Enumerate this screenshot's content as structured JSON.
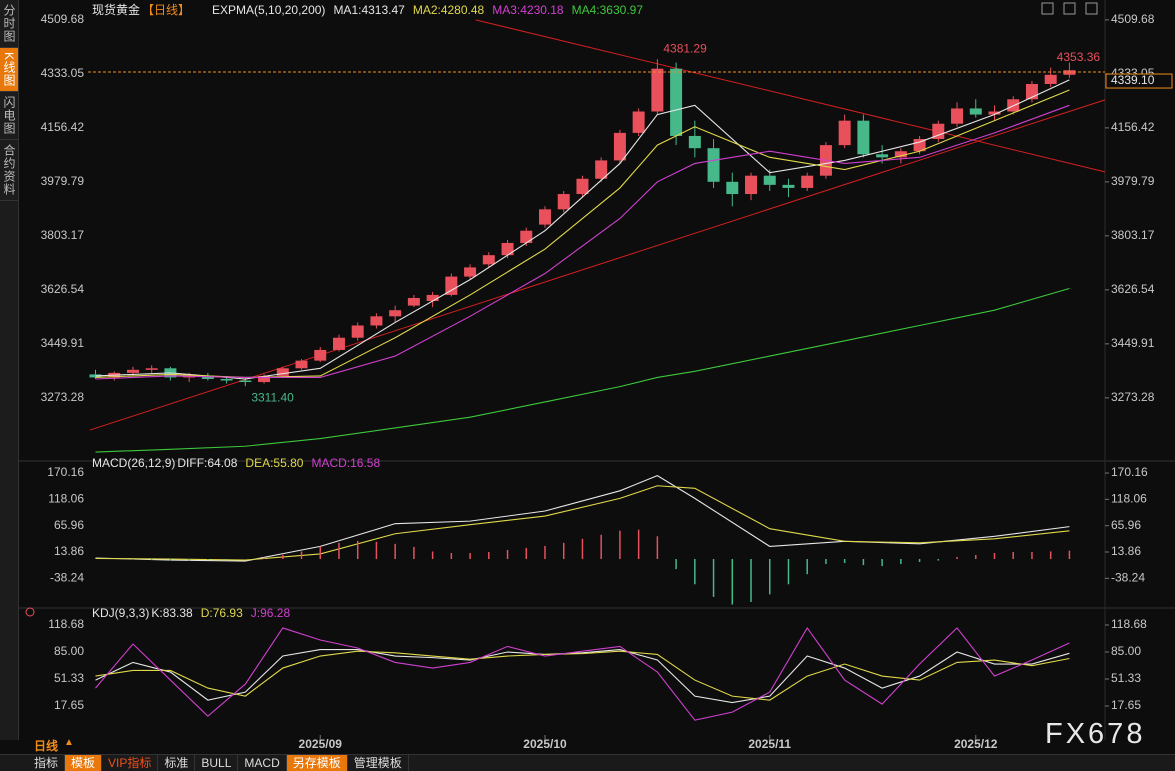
{
  "sidebar": {
    "tabs": [
      "分时图",
      "K线图",
      "闪电图",
      "合约资料"
    ]
  },
  "toolbar": {
    "period": "日线",
    "buttons": [
      "指标",
      "模板",
      "VIP指标",
      "标准",
      "BULL",
      "MACD",
      "另存模板",
      "管理模板"
    ]
  },
  "watermark": "FX678",
  "chart_data": [
    {
      "type": "candlestick",
      "title": "现货黄金",
      "period": "【日线】",
      "indicator": "EXPMA(5,10,20,200)",
      "up_color": "#e8505b",
      "down_color": "#47b88a",
      "ohlc": [
        [
          3350,
          3365,
          3335,
          3340
        ],
        [
          3340,
          3360,
          3330,
          3355
        ],
        [
          3355,
          3375,
          3345,
          3365
        ],
        [
          3365,
          3380,
          3355,
          3370
        ],
        [
          3370,
          3375,
          3330,
          3340
        ],
        [
          3340,
          3355,
          3325,
          3345
        ],
        [
          3345,
          3355,
          3330,
          3335
        ],
        [
          3335,
          3345,
          3320,
          3330
        ],
        [
          3330,
          3340,
          3311.4,
          3325
        ],
        [
          3325,
          3350,
          3320,
          3345
        ],
        [
          3345,
          3375,
          3340,
          3370
        ],
        [
          3370,
          3400,
          3365,
          3395
        ],
        [
          3395,
          3440,
          3390,
          3430
        ],
        [
          3430,
          3480,
          3425,
          3470
        ],
        [
          3470,
          3520,
          3460,
          3510
        ],
        [
          3510,
          3550,
          3500,
          3540
        ],
        [
          3540,
          3575,
          3520,
          3560
        ],
        [
          3575,
          3610,
          3570,
          3600
        ],
        [
          3590,
          3620,
          3570,
          3610
        ],
        [
          3610,
          3680,
          3605,
          3670
        ],
        [
          3670,
          3710,
          3660,
          3700
        ],
        [
          3710,
          3750,
          3700,
          3740
        ],
        [
          3740,
          3790,
          3730,
          3780
        ],
        [
          3780,
          3830,
          3770,
          3820
        ],
        [
          3840,
          3900,
          3830,
          3890
        ],
        [
          3890,
          3950,
          3880,
          3940
        ],
        [
          3940,
          4000,
          3930,
          3990
        ],
        [
          3990,
          4060,
          3980,
          4050
        ],
        [
          4050,
          4150,
          4040,
          4140
        ],
        [
          4140,
          4220,
          4130,
          4210
        ],
        [
          4210,
          4381.29,
          4200,
          4350
        ],
        [
          4350,
          4370,
          4100,
          4130
        ],
        [
          4130,
          4180,
          4060,
          4090
        ],
        [
          4090,
          4120,
          3960,
          3980
        ],
        [
          3980,
          4010,
          3900,
          3940
        ],
        [
          3940,
          4010,
          3920,
          4000
        ],
        [
          4000,
          4020,
          3950,
          3970
        ],
        [
          3970,
          3990,
          3930,
          3960
        ],
        [
          3960,
          4010,
          3950,
          4000
        ],
        [
          4000,
          4110,
          3990,
          4100
        ],
        [
          4100,
          4200,
          4090,
          4180
        ],
        [
          4180,
          4200,
          4060,
          4070
        ],
        [
          4070,
          4100,
          4040,
          4060
        ],
        [
          4060,
          4090,
          4040,
          4080
        ],
        [
          4080,
          4130,
          4070,
          4120
        ],
        [
          4120,
          4180,
          4110,
          4170
        ],
        [
          4170,
          4240,
          4160,
          4220
        ],
        [
          4220,
          4250,
          4190,
          4200
        ],
        [
          4200,
          4230,
          4180,
          4210
        ],
        [
          4210,
          4260,
          4200,
          4250
        ],
        [
          4250,
          4310,
          4240,
          4300
        ],
        [
          4300,
          4353.36,
          4290,
          4330
        ],
        [
          4330,
          4370,
          4320,
          4345
        ]
      ],
      "xlim": [
        -0.4,
        53.9
      ],
      "ylim": [
        3070,
        4542
      ],
      "yticks": [
        4509.68,
        4333.05,
        4156.42,
        3979.79,
        3803.17,
        3626.54,
        3449.91,
        3273.28
      ],
      "series": [
        {
          "name": "MA1:4313.47",
          "color": "#e6e6e6",
          "x": [
            0,
            4,
            8,
            12,
            16,
            20,
            24,
            28,
            30,
            32,
            36,
            40,
            44,
            48,
            52
          ],
          "values": [
            3345,
            3355,
            3335,
            3370,
            3520,
            3660,
            3820,
            4040,
            4200,
            4230,
            4010,
            4050,
            4110,
            4200,
            4313.47
          ]
        },
        {
          "name": "MA2:4280.48",
          "color": "#e0d84a",
          "x": [
            0,
            4,
            8,
            12,
            16,
            20,
            24,
            28,
            30,
            32,
            36,
            40,
            44,
            48,
            52
          ],
          "values": [
            3340,
            3350,
            3340,
            3345,
            3470,
            3610,
            3760,
            3960,
            4100,
            4160,
            4060,
            4020,
            4080,
            4180,
            4280.48
          ]
        },
        {
          "name": "MA3:4230.18",
          "color": "#d040d0",
          "x": [
            0,
            4,
            8,
            12,
            16,
            20,
            24,
            28,
            30,
            32,
            36,
            40,
            44,
            48,
            52
          ],
          "values": [
            3335,
            3345,
            3340,
            3340,
            3410,
            3540,
            3680,
            3860,
            3980,
            4040,
            4080,
            4040,
            4060,
            4140,
            4230.18
          ]
        },
        {
          "name": "MA4:3630.97",
          "color": "#3cc83c",
          "x": [
            0,
            4,
            8,
            12,
            16,
            20,
            24,
            28,
            30,
            32,
            36,
            40,
            44,
            48,
            52
          ],
          "values": [
            3096,
            3105,
            3115,
            3140,
            3175,
            3210,
            3260,
            3310,
            3340,
            3360,
            3410,
            3460,
            3510,
            3560,
            3630.97
          ]
        }
      ],
      "annotations": [
        {
          "x": 30,
          "value": 4381.29
        },
        {
          "x": 8,
          "value": 3311.4,
          "label": "3311.40"
        },
        {
          "x": 51,
          "value": 4353.36
        }
      ],
      "last_price": {
        "value": 4339.1,
        "label": "4339.10",
        "color": "#f08c1a"
      },
      "trendlines": [
        {
          "color": "#d42020",
          "x": [
            -0.3,
            53.9
          ],
          "values": [
            3168,
            4248
          ]
        },
        {
          "color": "#d42020",
          "x": [
            20.3,
            53.9
          ],
          "values": [
            4509.68,
            4012.5
          ]
        }
      ]
    },
    {
      "type": "macd",
      "title": "MACD(26,12,9)",
      "xlim": [
        -0.4,
        53.9
      ],
      "ylim": [
        -91,
        192
      ],
      "yticks": [
        170.16,
        118.06,
        65.96,
        13.86,
        -38.24
      ],
      "series": [
        {
          "name": "DIFF:64.08",
          "color": "#e6e6e6",
          "x": [
            0,
            4,
            8,
            12,
            16,
            20,
            24,
            28,
            30,
            32,
            36,
            40,
            44,
            48,
            52
          ],
          "values": [
            2,
            -2,
            -4,
            25,
            70,
            75,
            95,
            135,
            165,
            120,
            25,
            35,
            30,
            45,
            64.08
          ]
        },
        {
          "name": "DEA:55.80",
          "color": "#e0d84a",
          "x": [
            0,
            4,
            8,
            12,
            16,
            20,
            24,
            28,
            30,
            32,
            36,
            40,
            44,
            48,
            52
          ],
          "values": [
            1,
            0,
            -2,
            10,
            50,
            68,
            85,
            120,
            145,
            140,
            60,
            35,
            32,
            40,
            55.8
          ]
        },
        {
          "name": "MACD:16.58",
          "color": "#d040d0",
          "type": "bar",
          "up_color": "#e8505b",
          "down_color": "#47b88a",
          "values": [
            1,
            0,
            -1,
            -2,
            -3,
            -3,
            -2,
            -1,
            0,
            3,
            8,
            15,
            25,
            32,
            36,
            34,
            30,
            24,
            15,
            12,
            12,
            14,
            18,
            22,
            26,
            32,
            40,
            48,
            56,
            58,
            45,
            -20,
            -50,
            -75,
            -90,
            -85,
            -70,
            -50,
            -30,
            -10,
            -8,
            -12,
            -14,
            -10,
            -6,
            -3,
            4,
            8,
            12,
            14,
            14,
            15,
            16.58
          ]
        }
      ]
    },
    {
      "type": "line",
      "title": "KDJ(9,3,3)",
      "xlim": [
        -0.4,
        53.9
      ],
      "ylim": [
        -18.5,
        134.9
      ],
      "yticks": [
        118.68,
        {
          "value": 85,
          "label": "85.00"
        },
        51.33,
        17.65
      ],
      "xticks": [
        {
          "value": 12,
          "label": "2025/09"
        },
        {
          "value": 24,
          "label": "2025/10"
        },
        {
          "value": 36,
          "label": "2025/11"
        },
        {
          "value": 47,
          "label": "2025/12"
        }
      ],
      "series": [
        {
          "name": "K:83.38",
          "color": "#e6e6e6",
          "x": [
            0,
            2,
            4,
            6,
            8,
            10,
            12,
            14,
            16,
            18,
            20,
            22,
            24,
            26,
            28,
            30,
            32,
            34,
            36,
            38,
            40,
            42,
            44,
            46,
            48,
            50,
            52
          ],
          "values": [
            50,
            72,
            60,
            25,
            35,
            80,
            88,
            88,
            80,
            78,
            75,
            85,
            82,
            84,
            88,
            75,
            30,
            22,
            30,
            80,
            65,
            40,
            55,
            85,
            70,
            70,
            83.38
          ]
        },
        {
          "name": "D:76.93",
          "color": "#e0d84a",
          "x": [
            0,
            2,
            4,
            6,
            8,
            10,
            12,
            14,
            16,
            18,
            20,
            22,
            24,
            26,
            28,
            30,
            32,
            34,
            36,
            38,
            40,
            42,
            44,
            46,
            48,
            50,
            52
          ],
          "values": [
            55,
            62,
            62,
            40,
            30,
            65,
            80,
            86,
            84,
            80,
            76,
            80,
            82,
            83,
            86,
            82,
            50,
            30,
            25,
            55,
            70,
            55,
            50,
            72,
            75,
            68,
            76.93
          ]
        },
        {
          "name": "J:96.28",
          "color": "#d040d0",
          "x": [
            0,
            2,
            4,
            6,
            8,
            10,
            12,
            14,
            16,
            18,
            20,
            22,
            24,
            26,
            28,
            30,
            32,
            34,
            36,
            38,
            40,
            42,
            44,
            46,
            48,
            50,
            52
          ],
          "values": [
            40,
            95,
            50,
            5,
            45,
            115,
            100,
            90,
            72,
            65,
            72,
            92,
            80,
            86,
            92,
            60,
            0,
            10,
            35,
            115,
            50,
            20,
            70,
            115,
            55,
            75,
            96.28
          ]
        }
      ]
    }
  ]
}
